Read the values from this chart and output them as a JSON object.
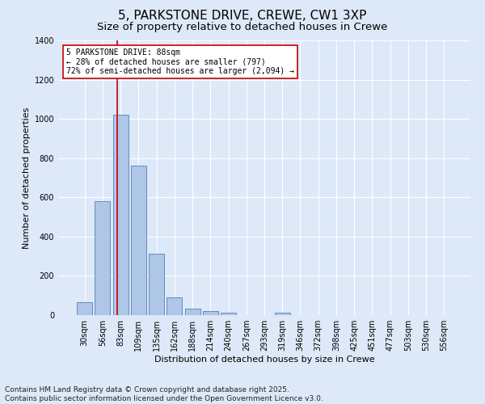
{
  "title_line1": "5, PARKSTONE DRIVE, CREWE, CW1 3XP",
  "title_line2": "Size of property relative to detached houses in Crewe",
  "xlabel": "Distribution of detached houses by size in Crewe",
  "ylabel": "Number of detached properties",
  "bin_labels": [
    "30sqm",
    "56sqm",
    "83sqm",
    "109sqm",
    "135sqm",
    "162sqm",
    "188sqm",
    "214sqm",
    "240sqm",
    "267sqm",
    "293sqm",
    "319sqm",
    "346sqm",
    "372sqm",
    "398sqm",
    "425sqm",
    "451sqm",
    "477sqm",
    "503sqm",
    "530sqm",
    "556sqm"
  ],
  "bar_values": [
    65,
    580,
    1020,
    760,
    315,
    90,
    35,
    22,
    12,
    0,
    0,
    14,
    0,
    0,
    0,
    0,
    0,
    0,
    0,
    0,
    0
  ],
  "bar_color": "#aec6e8",
  "bar_edge_color": "#5580b0",
  "background_color": "#dde8f8",
  "fig_background_color": "#dde8f8",
  "grid_color": "#ffffff",
  "red_line_color": "#cc0000",
  "annotation_text": "5 PARKSTONE DRIVE: 88sqm\n← 28% of detached houses are smaller (797)\n72% of semi-detached houses are larger (2,094) →",
  "annotation_box_color": "#ffffff",
  "annotation_box_edge": "#cc0000",
  "ylim": [
    0,
    1400
  ],
  "yticks": [
    0,
    200,
    400,
    600,
    800,
    1000,
    1200,
    1400
  ],
  "footnote": "Contains HM Land Registry data © Crown copyright and database right 2025.\nContains public sector information licensed under the Open Government Licence v3.0.",
  "title_fontsize": 11,
  "subtitle_fontsize": 9.5,
  "label_fontsize": 8,
  "tick_fontsize": 7,
  "footnote_fontsize": 6.5
}
